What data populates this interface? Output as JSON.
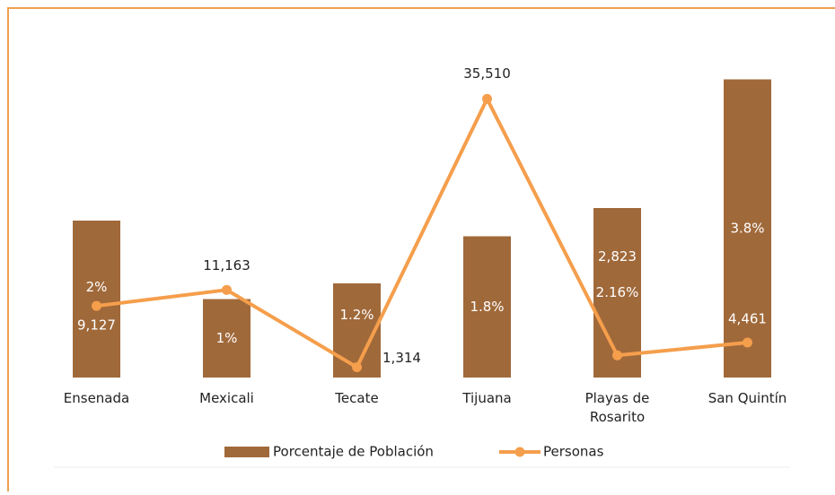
{
  "chart_data": {
    "type": "bar",
    "categories": [
      "Ensenada",
      "Mexicali",
      "Tecate",
      "Tijuana",
      "Playas de Rosarito",
      "San Quintín"
    ],
    "series": [
      {
        "name": "Porcentaje de Población",
        "type": "bar",
        "color": "#a0693a",
        "values": [
          2,
          1,
          1.2,
          1.8,
          2.16,
          3.8
        ],
        "value_labels": [
          "2%",
          "1%",
          "1.2%",
          "1.8%",
          "2.16%",
          "3.8%"
        ]
      },
      {
        "name": "Personas",
        "type": "line",
        "axis": "y2",
        "color": "#f59e4c",
        "values": [
          9127,
          11163,
          1314,
          35510,
          2823,
          4461
        ],
        "value_labels": [
          "9,127",
          "11,163",
          "1,314",
          "35,510",
          "2,823",
          "4,461"
        ]
      }
    ],
    "ylim": [
      0,
      4
    ],
    "y2lim": [
      0,
      40000
    ],
    "legend": "bottom"
  }
}
